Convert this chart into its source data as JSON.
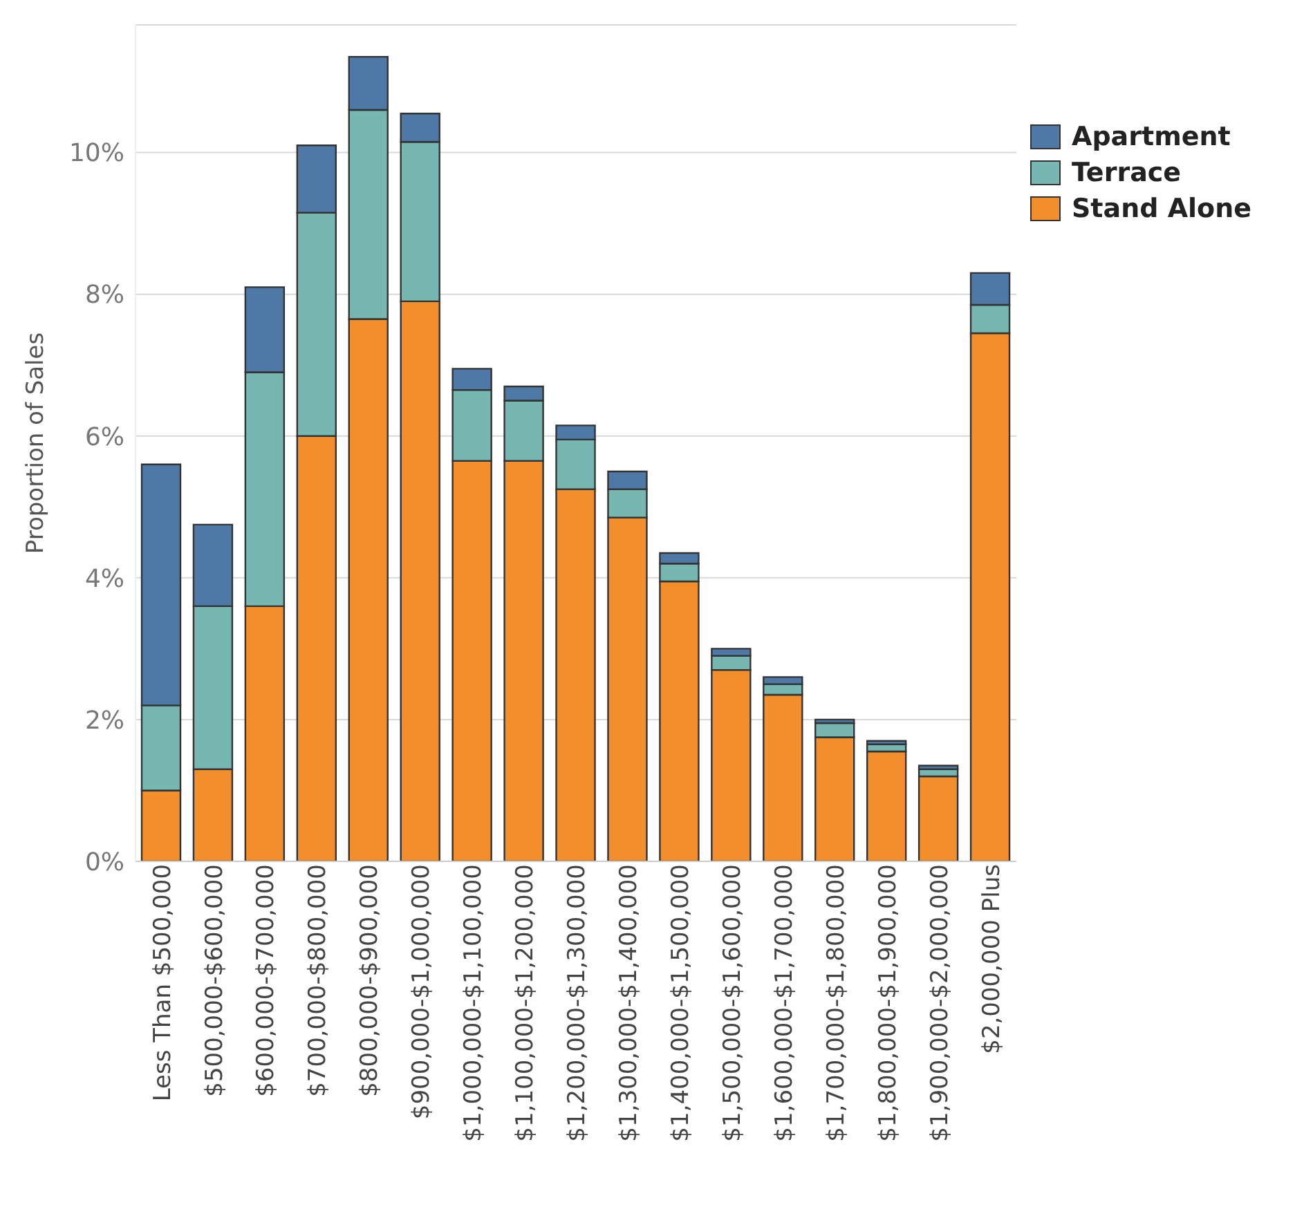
{
  "chart_data": {
    "type": "bar",
    "stacked": true,
    "ylabel": "Proportion of Sales",
    "categories": [
      "Less Than $500,000",
      "$500,000-$600,000",
      "$600,000-$700,000",
      "$700,000-$800,000",
      "$800,000-$900,000",
      "$900,000-$1,000,000",
      "$1,000,000-$1,100,000",
      "$1,100,000-$1,200,000",
      "$1,200,000-$1,300,000",
      "$1,300,000-$1,400,000",
      "$1,400,000-$1,500,000",
      "$1,500,000-$1,600,000",
      "$1,600,000-$1,700,000",
      "$1,700,000-$1,800,000",
      "$1,800,000-$1,900,000",
      "$1,900,000-$2,000,000",
      "$2,000,000 Plus"
    ],
    "series": [
      {
        "name": "Stand Alone",
        "color": "#f28e2b",
        "values": [
          1.0,
          1.3,
          3.6,
          6.0,
          7.65,
          7.9,
          5.65,
          5.65,
          5.25,
          4.85,
          3.95,
          2.7,
          2.35,
          1.75,
          1.55,
          1.2,
          7.45
        ]
      },
      {
        "name": "Terrace",
        "color": "#76b7b2",
        "values": [
          1.2,
          2.3,
          3.3,
          3.15,
          2.95,
          2.25,
          1.0,
          0.85,
          0.7,
          0.4,
          0.25,
          0.2,
          0.15,
          0.2,
          0.1,
          0.1,
          0.4
        ]
      },
      {
        "name": "Apartment",
        "color": "#4e79a7",
        "values": [
          3.4,
          1.15,
          1.2,
          0.95,
          0.75,
          0.4,
          0.3,
          0.2,
          0.2,
          0.25,
          0.15,
          0.1,
          0.1,
          0.05,
          0.05,
          0.05,
          0.45
        ]
      }
    ],
    "ylim": [
      0,
      11.8
    ],
    "yticks": [
      {
        "value": 0,
        "label": "0%"
      },
      {
        "value": 2,
        "label": "2%"
      },
      {
        "value": 4,
        "label": "4%"
      },
      {
        "value": 6,
        "label": "6%"
      },
      {
        "value": 8,
        "label": "8%"
      },
      {
        "value": 10,
        "label": "10%"
      }
    ],
    "grid": "y",
    "legend": "top right"
  }
}
